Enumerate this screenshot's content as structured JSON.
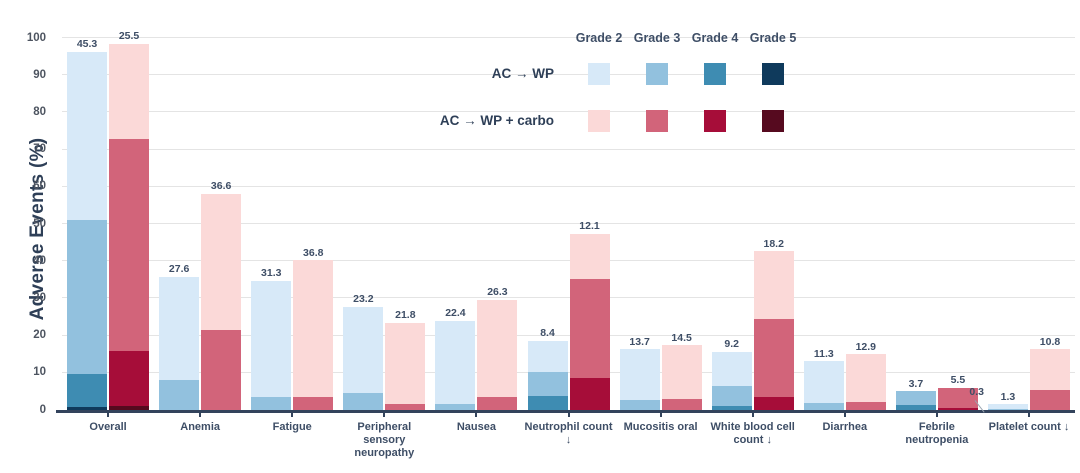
{
  "legend": {
    "grade_headers": [
      "Grade 2",
      "Grade 3",
      "Grade 4",
      "Grade 5"
    ],
    "rows": [
      {
        "label": "AC → WP"
      },
      {
        "label": "AC → WP + carbo"
      }
    ]
  },
  "colors": {
    "axis": "#33435c",
    "gridline": "#e4e4e4",
    "text": "#3e4e66"
  },
  "chart_data": {
    "type": "bar",
    "stacked": true,
    "title": "",
    "xlabel": "",
    "ylabel": "Adverse Events (%)",
    "ylim": [
      0,
      100
    ],
    "yticks": [
      0,
      10,
      20,
      30,
      40,
      50,
      60,
      70,
      80,
      90,
      100
    ],
    "grid": true,
    "legend_position": "top-right",
    "categories": [
      "Overall",
      "Anemia",
      "Fatigue",
      "Peripheral sensory neuropathy",
      "Nausea",
      "Neutrophil count ↓",
      "Mucositis oral",
      "White blood cell count ↓",
      "Diarrhea",
      "Febrile neutropenia",
      "Platelet count ↓"
    ],
    "arms": [
      "AC → WP",
      "AC → WP + carbo"
    ],
    "stack_order_bottom_to_top": [
      "Grade 5",
      "Grade 4",
      "Grade 3",
      "Grade 2"
    ],
    "series": [
      {
        "arm": "AC → WP",
        "grade": "Grade 2",
        "color": "#d7e9f8",
        "values": [
          45.3,
          27.6,
          31.3,
          23.2,
          22.4,
          8.4,
          13.7,
          9.2,
          11.3,
          0,
          1.3
        ]
      },
      {
        "arm": "AC → WP",
        "grade": "Grade 3",
        "color": "#92c1de",
        "values": [
          41.3,
          8.2,
          3.4,
          4.5,
          1.6,
          6.3,
          2.6,
          5.3,
          1.8,
          3.7,
          0.3
        ],
        "leader_indices": [
          10
        ]
      },
      {
        "arm": "AC → WP",
        "grade": "Grade 4",
        "color": "#3e8cb2",
        "values": [
          8.9,
          0,
          0,
          0,
          0,
          3.9,
          0,
          1.1,
          0,
          1.3,
          0
        ]
      },
      {
        "arm": "AC → WP",
        "grade": "Grade 5",
        "color": "#0f3a5c",
        "values": [
          0.8,
          0,
          0,
          0,
          0,
          0,
          0,
          0,
          0,
          0,
          0
        ],
        "label_colors": {
          "0": "#ffffff"
        }
      },
      {
        "arm": "AC → WP + carbo",
        "grade": "Grade 2",
        "color": "#fbd9d8",
        "values": [
          25.5,
          36.6,
          36.8,
          21.8,
          26.3,
          12.1,
          14.5,
          18.2,
          12.9,
          0,
          10.8
        ]
      },
      {
        "arm": "AC → WP + carbo",
        "grade": "Grade 3",
        "color": "#d2647a",
        "values": [
          57.1,
          21.6,
          3.4,
          1.6,
          3.4,
          26.6,
          2.9,
          21.1,
          2.1,
          5.5,
          5.5
        ]
      },
      {
        "arm": "AC → WP + carbo",
        "grade": "Grade 4",
        "color": "#a60d39",
        "values": [
          14.7,
          0,
          0,
          0,
          0,
          8.7,
          0,
          3.4,
          0,
          0.5,
          0
        ],
        "label_colors": {
          "9": "#f4bfc7"
        }
      },
      {
        "arm": "AC → WP + carbo",
        "grade": "Grade 5",
        "color": "#560a1f",
        "values": [
          1.1,
          0,
          0,
          0,
          0,
          0,
          0,
          0,
          0,
          0,
          0
        ],
        "label_colors": {
          "0": "#ffffff"
        }
      }
    ]
  }
}
